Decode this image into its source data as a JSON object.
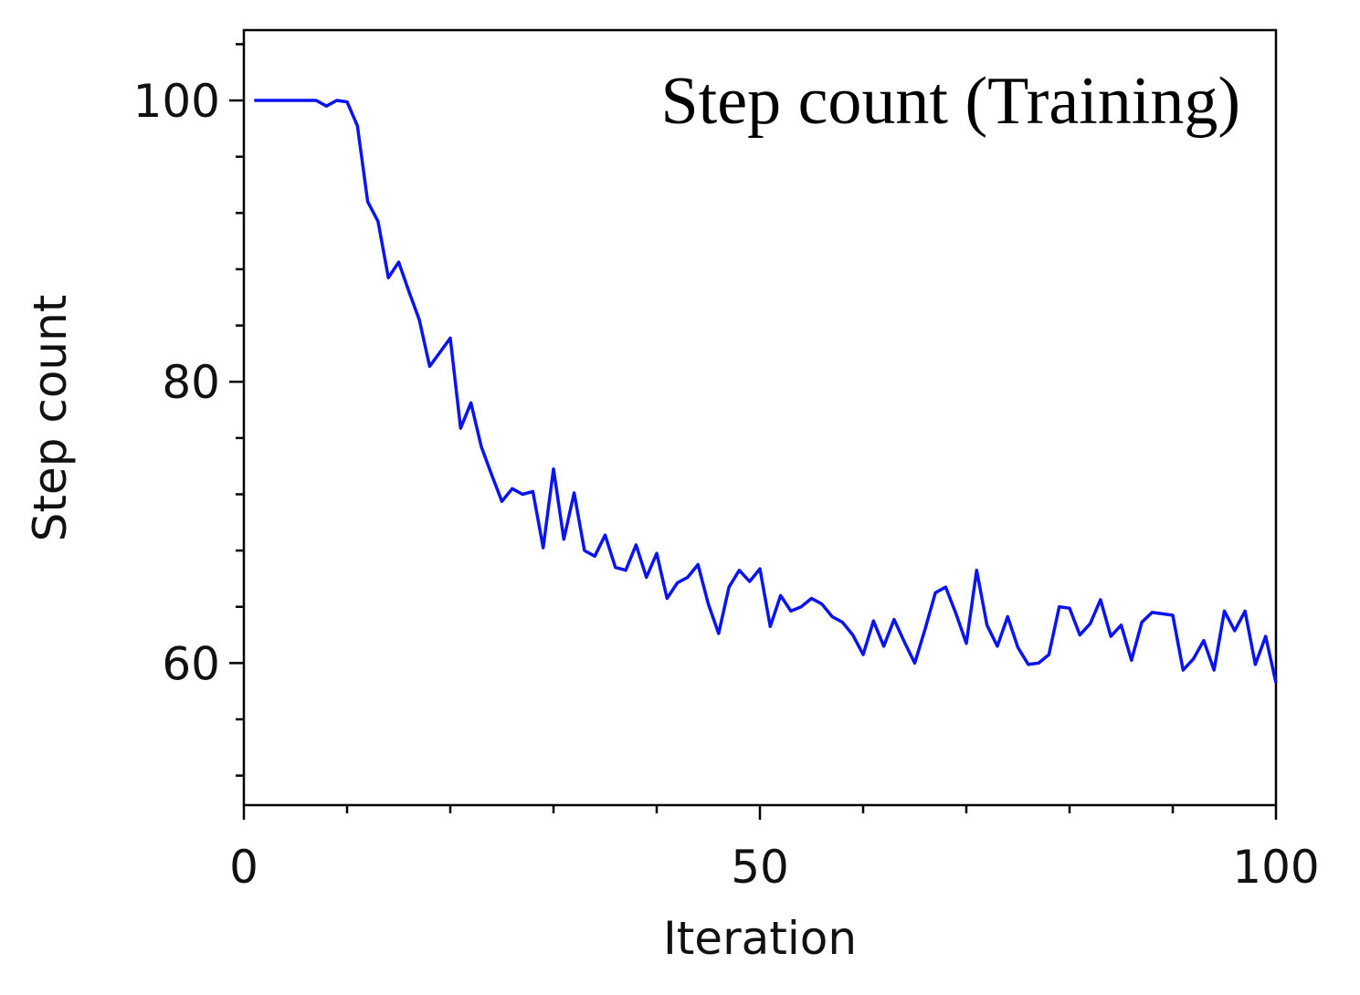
{
  "chart_data": {
    "type": "line",
    "title": "Step count (Training)",
    "xlabel": "Iteration",
    "ylabel": "Step count",
    "xlim": [
      0,
      100
    ],
    "ylim": [
      49.9,
      105
    ],
    "x_ticks": [
      0,
      50,
      100
    ],
    "x_minor_ticks": [
      10,
      20,
      30,
      40,
      60,
      70,
      80,
      90
    ],
    "y_ticks": [
      60,
      80,
      100
    ],
    "y_minor_ticks": [
      52,
      56,
      64,
      68,
      72,
      76,
      84,
      88,
      92,
      96,
      104
    ],
    "grid": false,
    "line_color": "#0a14f0",
    "series": [
      {
        "x": [
          1,
          2,
          3,
          4,
          5,
          6,
          7,
          8,
          9,
          10,
          11,
          12,
          13,
          14,
          15,
          16,
          17,
          18,
          19,
          20,
          21,
          22,
          23,
          24,
          25,
          26,
          27,
          28,
          29,
          30,
          31,
          32,
          33,
          34,
          35,
          36,
          37,
          38,
          39,
          40,
          41,
          42,
          43,
          44,
          45,
          46,
          47,
          48,
          49,
          50,
          51,
          52,
          53,
          54,
          55,
          56,
          57,
          58,
          59,
          60,
          61,
          62,
          63,
          64,
          65,
          66,
          67,
          68,
          69,
          70,
          71,
          72,
          73,
          74,
          75,
          76,
          77,
          78,
          79,
          80,
          81,
          82,
          83,
          84,
          85,
          86,
          87,
          88,
          89,
          90,
          91,
          92,
          93,
          94,
          95,
          96,
          97,
          98,
          99,
          100
        ],
        "values": [
          100,
          100,
          100,
          100,
          100,
          100,
          100,
          99.6,
          100,
          99.9,
          98.2,
          92.8,
          91.4,
          87.4,
          88.5,
          86.4,
          84.4,
          81.1,
          82.1,
          83.1,
          76.7,
          78.5,
          75.4,
          73.4,
          71.5,
          72.4,
          72,
          72.2,
          68.2,
          73.8,
          68.8,
          72.1,
          68,
          67.6,
          69.1,
          66.8,
          66.6,
          68.4,
          66.1,
          67.8,
          64.6,
          65.7,
          66.1,
          67,
          64.2,
          62.1,
          65.4,
          66.6,
          65.8,
          66.7,
          62.6,
          64.8,
          63.7,
          64,
          64.6,
          64.2,
          63.3,
          62.9,
          62,
          60.6,
          63,
          61.2,
          63.1,
          61.5,
          60,
          62.4,
          65,
          65.4,
          63.5,
          61.4,
          66.6,
          62.7,
          61.2,
          63.3,
          61.1,
          59.9,
          60,
          60.6,
          64,
          63.9,
          62,
          62.8,
          64.5,
          61.9,
          62.7,
          60.2,
          62.9,
          63.6,
          63.5,
          63.4,
          59.5,
          60.3,
          61.6,
          59.5,
          63.7,
          62.3,
          63.7,
          59.9,
          61.9,
          58.6
        ]
      }
    ]
  }
}
